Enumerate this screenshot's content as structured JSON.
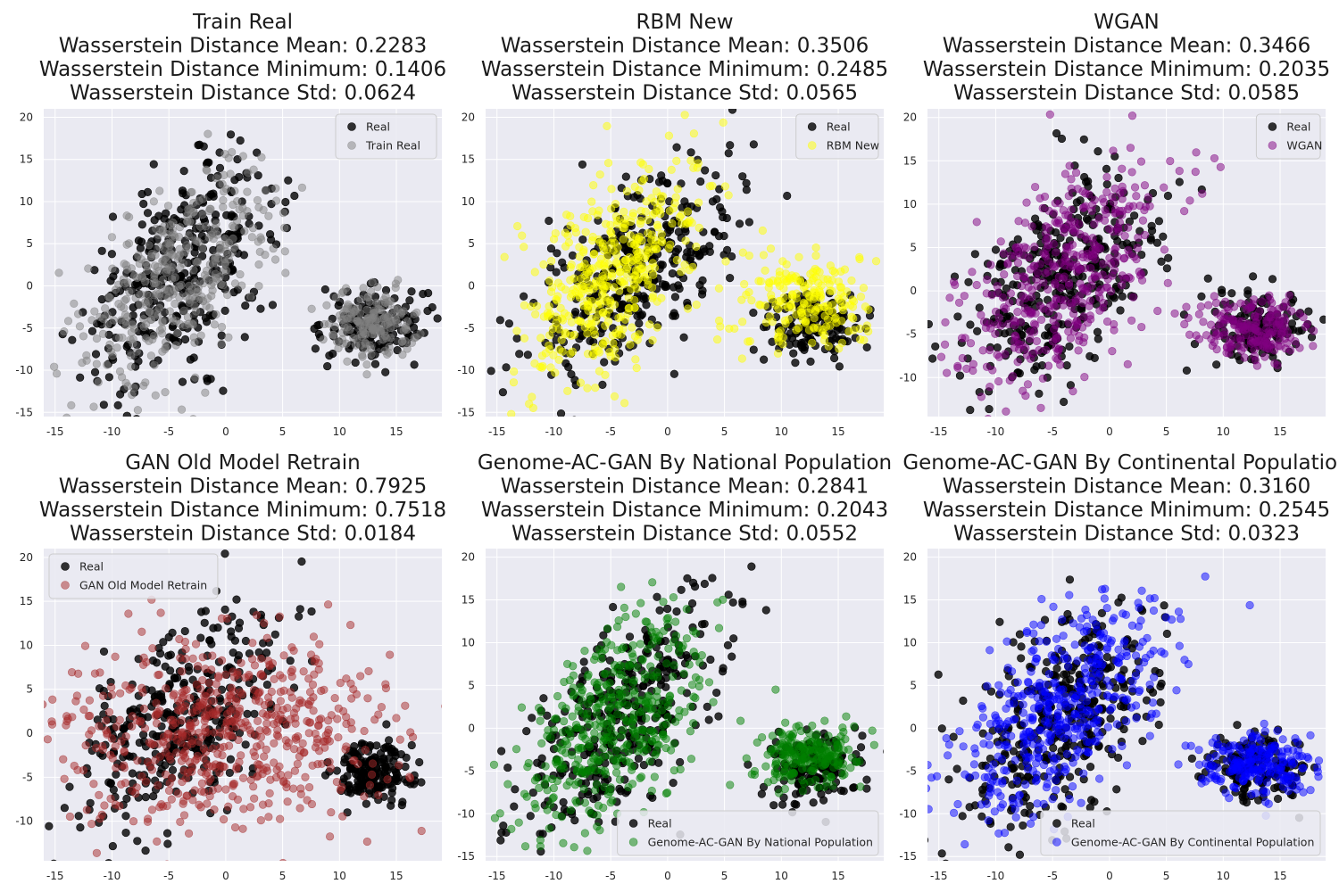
{
  "colors": {
    "panel_background": "#EAEAF2",
    "grid": "#FFFFFF",
    "real": "#000000",
    "legend_background": "#EAEAF2",
    "legend_edge": "#CCCCCC"
  },
  "chart_data": [
    {
      "type": "scatter",
      "title": [
        "Train Real",
        "Wasserstein Distance Mean: 0.2283",
        "Wasserstein Distance Minimum: 0.1406",
        "Wasserstein Distance Std: 0.0624"
      ],
      "xlabel": "",
      "ylabel": "",
      "xlim": [
        -16,
        19
      ],
      "ylim": [
        -15.5,
        21
      ],
      "xticks": [
        -15,
        -10,
        -5,
        0,
        5,
        10,
        15
      ],
      "yticks": [
        -15,
        -10,
        -5,
        0,
        5,
        10,
        15,
        20
      ],
      "grid": true,
      "legend_position": "top-right",
      "series": [
        {
          "name": "Real",
          "color": "#000000",
          "alpha": 0.8
        },
        {
          "name": "Train Real",
          "color": "#808080",
          "alpha": 0.5
        }
      ],
      "clusters": [
        {
          "series": 0,
          "n": 360,
          "cx": -4,
          "cy": 1.5,
          "sx": 4.3,
          "sy": 6.5,
          "rho": 0.55
        },
        {
          "series": 0,
          "n": 150,
          "cx": 13,
          "cy": -4.5,
          "sx": 2.2,
          "sy": 2.2,
          "rho": 0.0
        },
        {
          "series": 1,
          "n": 380,
          "cx": -4,
          "cy": 1.5,
          "sx": 4.3,
          "sy": 6.5,
          "rho": 0.55
        },
        {
          "series": 1,
          "n": 170,
          "cx": 13,
          "cy": -4.5,
          "sx": 2.0,
          "sy": 2.0,
          "rho": 0.0
        }
      ]
    },
    {
      "type": "scatter",
      "title": [
        "RBM New",
        "Wasserstein Distance Mean: 0.3506",
        "Wasserstein Distance Minimum: 0.2485",
        "Wasserstein Distance Std: 0.0565"
      ],
      "xlabel": "",
      "ylabel": "",
      "xlim": [
        -16,
        19
      ],
      "ylim": [
        -15.5,
        21
      ],
      "xticks": [
        -15,
        -10,
        -5,
        0,
        5,
        10,
        15
      ],
      "yticks": [
        -15,
        -10,
        -5,
        0,
        5,
        10,
        15,
        20
      ],
      "grid": true,
      "legend_position": "top-right",
      "series": [
        {
          "name": "Real",
          "color": "#000000",
          "alpha": 0.8
        },
        {
          "name": "RBM New",
          "color": "#FFFF00",
          "alpha": 0.5
        }
      ],
      "clusters": [
        {
          "series": 0,
          "n": 360,
          "cx": -3,
          "cy": 2,
          "sx": 4.3,
          "sy": 6.0,
          "rho": 0.55
        },
        {
          "series": 0,
          "n": 150,
          "cx": 13,
          "cy": -4.5,
          "sx": 2.2,
          "sy": 2.0,
          "rho": 0.0
        },
        {
          "series": 1,
          "n": 420,
          "cx": -5,
          "cy": 1,
          "sx": 3.8,
          "sy": 6.5,
          "rho": 0.5
        },
        {
          "series": 1,
          "n": 200,
          "cx": 12,
          "cy": -2,
          "sx": 2.8,
          "sy": 3.0,
          "rho": 0.0
        }
      ]
    },
    {
      "type": "scatter",
      "title": [
        "WGAN",
        "Wasserstein Distance Mean: 0.3466",
        "Wasserstein Distance Minimum: 0.2035",
        "Wasserstein Distance Std: 0.0585"
      ],
      "xlabel": "",
      "ylabel": "",
      "xlim": [
        -16,
        19
      ],
      "ylim": [
        -14.5,
        21
      ],
      "xticks": [
        -15,
        -10,
        -5,
        0,
        5,
        10,
        15
      ],
      "yticks": [
        -10,
        -5,
        0,
        5,
        10,
        15,
        20
      ],
      "grid": true,
      "legend_position": "top-right",
      "series": [
        {
          "name": "Real",
          "color": "#000000",
          "alpha": 0.8
        },
        {
          "name": "WGAN",
          "color": "#800080",
          "alpha": 0.5
        }
      ],
      "clusters": [
        {
          "series": 0,
          "n": 360,
          "cx": -4,
          "cy": 1.5,
          "sx": 4.3,
          "sy": 6.5,
          "rho": 0.55
        },
        {
          "series": 0,
          "n": 150,
          "cx": 13,
          "cy": -4.5,
          "sx": 2.2,
          "sy": 2.2,
          "rho": 0.0
        },
        {
          "series": 1,
          "n": 430,
          "cx": -4,
          "cy": 1.5,
          "sx": 4.6,
          "sy": 6.8,
          "rho": 0.5
        },
        {
          "series": 1,
          "n": 190,
          "cx": 12.5,
          "cy": -4.2,
          "sx": 2.5,
          "sy": 1.8,
          "rho": 0.0
        }
      ]
    },
    {
      "type": "scatter",
      "title": [
        "GAN Old Model Retrain",
        "Wasserstein Distance Mean: 0.7925",
        "Wasserstein Distance Minimum: 0.7518",
        "Wasserstein Distance Std: 0.0184"
      ],
      "xlabel": "",
      "ylabel": "",
      "xlim": [
        -16,
        19
      ],
      "ylim": [
        -14.5,
        21
      ],
      "xticks": [
        -15,
        -10,
        -5,
        0,
        5,
        10,
        15
      ],
      "yticks": [
        -10,
        -5,
        0,
        5,
        10,
        15,
        20
      ],
      "grid": true,
      "legend_position": "top-left",
      "series": [
        {
          "name": "Real",
          "color": "#000000",
          "alpha": 0.8
        },
        {
          "name": "GAN Old Model Retrain",
          "color": "#A52A2A",
          "alpha": 0.5
        }
      ],
      "clusters": [
        {
          "series": 0,
          "n": 360,
          "cx": -4,
          "cy": 1.5,
          "sx": 4.3,
          "sy": 6.5,
          "rho": 0.55
        },
        {
          "series": 0,
          "n": 170,
          "cx": 13,
          "cy": -4.2,
          "sx": 1.8,
          "sy": 1.8,
          "rho": 0.0
        },
        {
          "series": 1,
          "n": 600,
          "cx": 0,
          "cy": 0.5,
          "sx": 7.0,
          "sy": 5.5,
          "rho": 0.1
        }
      ]
    },
    {
      "type": "scatter",
      "title": [
        "Genome-AC-GAN By National Population",
        "Wasserstein Distance Mean: 0.2841",
        "Wasserstein Distance Minimum: 0.2043",
        "Wasserstein Distance Std: 0.0552"
      ],
      "xlabel": "",
      "ylabel": "",
      "xlim": [
        -16,
        19
      ],
      "ylim": [
        -15.5,
        21
      ],
      "xticks": [
        -15,
        -10,
        -5,
        0,
        5,
        10,
        15
      ],
      "yticks": [
        -15,
        -10,
        -5,
        0,
        5,
        10,
        15,
        20
      ],
      "grid": true,
      "legend_position": "bottom-right",
      "series": [
        {
          "name": "Real",
          "color": "#000000",
          "alpha": 0.8
        },
        {
          "name": "Genome-AC-GAN By National Population",
          "color": "#008000",
          "alpha": 0.5
        }
      ],
      "clusters": [
        {
          "series": 0,
          "n": 360,
          "cx": -4,
          "cy": 1.5,
          "sx": 4.3,
          "sy": 6.5,
          "rho": 0.55
        },
        {
          "series": 0,
          "n": 150,
          "cx": 13,
          "cy": -4.5,
          "sx": 2.2,
          "sy": 2.2,
          "rho": 0.0
        },
        {
          "series": 1,
          "n": 430,
          "cx": -5,
          "cy": 0.5,
          "sx": 4.2,
          "sy": 6.5,
          "rho": 0.55
        },
        {
          "series": 1,
          "n": 210,
          "cx": 12.5,
          "cy": -3.5,
          "sx": 2.2,
          "sy": 1.8,
          "rho": 0.0
        }
      ]
    },
    {
      "type": "scatter",
      "title": [
        "Genome-AC-GAN By Continental Population",
        "Wasserstein Distance Mean: 0.3160",
        "Wasserstein Distance Minimum: 0.2545",
        "Wasserstein Distance Std: 0.0323"
      ],
      "xlabel": "",
      "ylabel": "",
      "xlim": [
        -16,
        19
      ],
      "ylim": [
        -15.5,
        21
      ],
      "xticks": [
        -15,
        -10,
        -5,
        0,
        5,
        10,
        15
      ],
      "yticks": [
        -15,
        -10,
        -5,
        0,
        5,
        10,
        15,
        20
      ],
      "grid": true,
      "legend_position": "bottom-right",
      "series": [
        {
          "name": "Real",
          "color": "#000000",
          "alpha": 0.8
        },
        {
          "name": "Genome-AC-GAN By Continental Population",
          "color": "#0000FF",
          "alpha": 0.5
        }
      ],
      "clusters": [
        {
          "series": 0,
          "n": 360,
          "cx": -4,
          "cy": 1.5,
          "sx": 4.3,
          "sy": 6.5,
          "rho": 0.55
        },
        {
          "series": 0,
          "n": 150,
          "cx": 13,
          "cy": -4.5,
          "sx": 2.2,
          "sy": 2.2,
          "rho": 0.0
        },
        {
          "series": 1,
          "n": 450,
          "cx": -4.5,
          "cy": 1.5,
          "sx": 4.5,
          "sy": 6.8,
          "rho": 0.6
        },
        {
          "series": 1,
          "n": 220,
          "cx": 13,
          "cy": -4.2,
          "sx": 2.4,
          "sy": 1.8,
          "rho": 0.0
        }
      ]
    }
  ]
}
